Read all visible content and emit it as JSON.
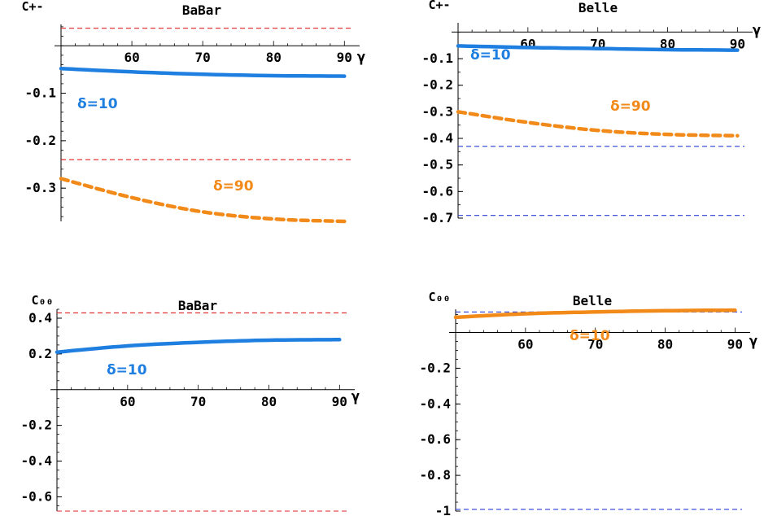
{
  "colors": {
    "blue": "#1f7fe0",
    "orange": "#f28a1a",
    "red_ref": "#e02020",
    "blue_ref": "#2b3fd6"
  },
  "chart_data": [
    {
      "type": "line",
      "title": "BaBar",
      "ylabel": "C+-",
      "xlabel": "γ",
      "xlim": [
        50,
        91
      ],
      "ylim": [
        -0.37,
        0.045
      ],
      "x_ticks": [
        "60",
        "70",
        "80",
        "90"
      ],
      "y_ticks": [
        "-0.1",
        "-0.2",
        "-0.3"
      ],
      "reference_lines": [
        {
          "y": 0.037,
          "color": "red"
        },
        {
          "y": -0.24,
          "color": "red"
        }
      ],
      "series": [
        {
          "label": "δ=10",
          "color": "blue",
          "dashed": false,
          "x": [
            50,
            60,
            70,
            80,
            90
          ],
          "y": [
            -0.048,
            -0.055,
            -0.06,
            -0.063,
            -0.064
          ]
        },
        {
          "label": "δ=90",
          "color": "orange",
          "dashed": true,
          "x": [
            50,
            60,
            70,
            80,
            90
          ],
          "y": [
            -0.28,
            -0.32,
            -0.35,
            -0.365,
            -0.37
          ]
        }
      ]
    },
    {
      "type": "line",
      "title": "Belle",
      "ylabel": "C+-",
      "xlabel": "γ",
      "xlim": [
        50,
        91
      ],
      "ylim": [
        -0.7,
        0.035
      ],
      "x_ticks": [
        "60",
        "70",
        "80",
        "90"
      ],
      "y_ticks": [
        "-0.1",
        "-0.2",
        "-0.3",
        "-0.4",
        "-0.5",
        "-0.6",
        "-0.7"
      ],
      "reference_lines": [
        {
          "y": -0.43,
          "color": "blue"
        },
        {
          "y": -0.69,
          "color": "blue"
        }
      ],
      "series": [
        {
          "label": "δ=10",
          "color": "blue",
          "dashed": false,
          "x": [
            50,
            60,
            70,
            80,
            90
          ],
          "y": [
            -0.052,
            -0.058,
            -0.062,
            -0.066,
            -0.068
          ]
        },
        {
          "label": "δ=90",
          "color": "orange",
          "dashed": true,
          "x": [
            50,
            60,
            70,
            80,
            90
          ],
          "y": [
            -0.3,
            -0.34,
            -0.37,
            -0.385,
            -0.39
          ]
        }
      ]
    },
    {
      "type": "line",
      "title": "BaBar",
      "ylabel": "C₀₀",
      "xlabel": "γ",
      "xlim": [
        50,
        91
      ],
      "ylim": [
        -0.68,
        0.45
      ],
      "x_ticks": [
        "60",
        "70",
        "80",
        "90"
      ],
      "y_ticks": [
        "0.4",
        "0.2",
        "-0.2",
        "-0.4",
        "-0.6"
      ],
      "reference_lines": [
        {
          "y": 0.43,
          "color": "red"
        },
        {
          "y": -0.68,
          "color": "red"
        }
      ],
      "series": [
        {
          "label": "δ=10",
          "color": "blue",
          "dashed": false,
          "x": [
            50,
            60,
            70,
            80,
            90
          ],
          "y": [
            0.21,
            0.245,
            0.265,
            0.277,
            0.28
          ]
        }
      ]
    },
    {
      "type": "line",
      "title": "Belle",
      "ylabel": "C₀₀",
      "xlabel": "γ",
      "xlim": [
        50,
        91
      ],
      "ylim": [
        -1.0,
        0.13
      ],
      "x_ticks": [
        "60",
        "70",
        "80",
        "90"
      ],
      "y_ticks": [
        "-0.2",
        "-0.4",
        "-0.6",
        "-0.8",
        "-1"
      ],
      "reference_lines": [
        {
          "y": 0.115,
          "color": "blue"
        },
        {
          "y": -0.99,
          "color": "blue"
        }
      ],
      "series": [
        {
          "label": "δ=10",
          "color": "orange",
          "dashed": false,
          "x": [
            50,
            60,
            70,
            80,
            90
          ],
          "y": [
            0.085,
            0.105,
            0.115,
            0.122,
            0.125
          ]
        }
      ]
    }
  ]
}
